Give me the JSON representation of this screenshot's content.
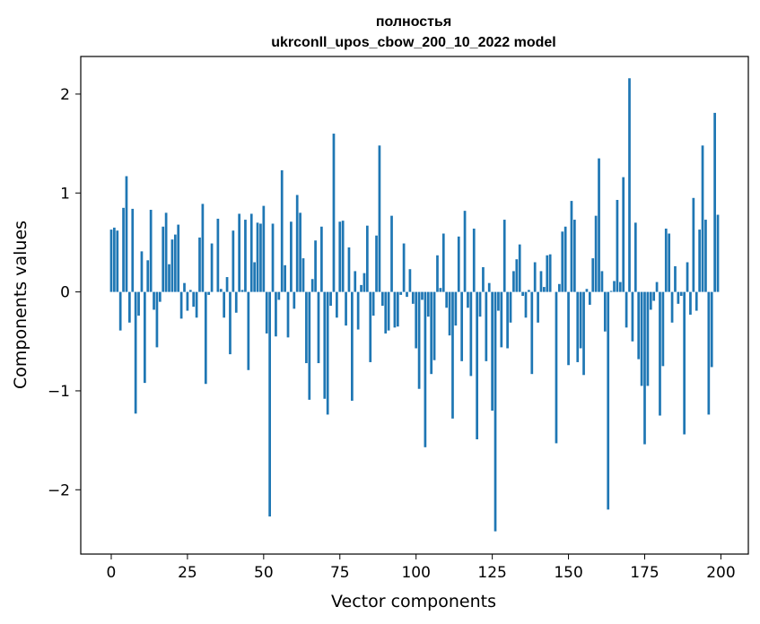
{
  "chart_data": {
    "type": "bar",
    "title_line1": "полностья",
    "title_line2": "ukrconll_upos_cbow_200_10_2022 model",
    "xlabel": "Vector components",
    "ylabel": "Components values",
    "xlim": [
      -10,
      209
    ],
    "ylim": [
      -2.65,
      2.38
    ],
    "xticks": [
      0,
      25,
      50,
      75,
      100,
      125,
      150,
      175,
      200
    ],
    "xtick_labels": [
      "0",
      "25",
      "50",
      "75",
      "100",
      "125",
      "150",
      "175",
      "200"
    ],
    "yticks": [
      -2,
      -1,
      0,
      1,
      2
    ],
    "ytick_labels": [
      "−2",
      "−1",
      "0",
      "1",
      "2"
    ],
    "bar_color": "#1f77b4",
    "x": [
      0,
      1,
      2,
      3,
      4,
      5,
      6,
      7,
      8,
      9,
      10,
      11,
      12,
      13,
      14,
      15,
      16,
      17,
      18,
      19,
      20,
      21,
      22,
      23,
      24,
      25,
      26,
      27,
      28,
      29,
      30,
      31,
      32,
      33,
      34,
      35,
      36,
      37,
      38,
      39,
      40,
      41,
      42,
      43,
      44,
      45,
      46,
      47,
      48,
      49,
      50,
      51,
      52,
      53,
      54,
      55,
      56,
      57,
      58,
      59,
      60,
      61,
      62,
      63,
      64,
      65,
      66,
      67,
      68,
      69,
      70,
      71,
      72,
      73,
      74,
      75,
      76,
      77,
      78,
      79,
      80,
      81,
      82,
      83,
      84,
      85,
      86,
      87,
      88,
      89,
      90,
      91,
      92,
      93,
      94,
      95,
      96,
      97,
      98,
      99,
      100,
      101,
      102,
      103,
      104,
      105,
      106,
      107,
      108,
      109,
      110,
      111,
      112,
      113,
      114,
      115,
      116,
      117,
      118,
      119,
      120,
      121,
      122,
      123,
      124,
      125,
      126,
      127,
      128,
      129,
      130,
      131,
      132,
      133,
      134,
      135,
      136,
      137,
      138,
      139,
      140,
      141,
      142,
      143,
      144,
      145,
      146,
      147,
      148,
      149,
      150,
      151,
      152,
      153,
      154,
      155,
      156,
      157,
      158,
      159,
      160,
      161,
      162,
      163,
      164,
      165,
      166,
      167,
      168,
      169,
      170,
      171,
      172,
      173,
      174,
      175,
      176,
      177,
      178,
      179,
      180,
      181,
      182,
      183,
      184,
      185,
      186,
      187,
      188,
      189,
      190,
      191,
      192,
      193,
      194,
      195,
      196,
      197,
      198,
      199
    ],
    "values": [
      0.63,
      0.65,
      0.62,
      -0.39,
      0.85,
      1.17,
      -0.31,
      0.84,
      -1.23,
      -0.24,
      0.41,
      -0.92,
      0.32,
      0.83,
      -0.18,
      -0.56,
      -0.1,
      0.66,
      0.8,
      0.28,
      0.53,
      0.58,
      0.68,
      -0.27,
      0.09,
      -0.19,
      0.02,
      -0.15,
      -0.26,
      0.55,
      0.89,
      -0.93,
      -0.03,
      0.49,
      0.0,
      0.74,
      0.03,
      -0.26,
      0.15,
      -0.63,
      0.62,
      -0.21,
      0.79,
      0.02,
      0.73,
      -0.79,
      0.79,
      0.3,
      0.7,
      0.69,
      0.87,
      -0.42,
      -2.27,
      0.69,
      -0.45,
      -0.08,
      1.23,
      0.27,
      -0.46,
      0.71,
      -0.17,
      0.98,
      0.8,
      0.34,
      -0.72,
      -1.09,
      0.13,
      0.52,
      -0.72,
      0.66,
      -1.08,
      -1.24,
      -0.14,
      1.6,
      -0.26,
      0.71,
      0.72,
      -0.34,
      0.45,
      -1.1,
      0.21,
      -0.38,
      0.07,
      0.19,
      0.67,
      -0.71,
      -0.24,
      0.57,
      1.48,
      -0.14,
      -0.42,
      -0.39,
      0.77,
      -0.36,
      -0.35,
      -0.03,
      0.49,
      -0.05,
      0.23,
      -0.12,
      -0.57,
      -0.98,
      -0.08,
      -1.57,
      -0.25,
      -0.83,
      -0.69,
      0.37,
      0.04,
      0.59,
      -0.16,
      -0.44,
      -1.28,
      -0.34,
      0.56,
      -0.7,
      0.82,
      -0.16,
      -0.85,
      0.64,
      -1.49,
      -0.25,
      0.25,
      -0.7,
      0.09,
      -1.2,
      -2.42,
      -0.19,
      -0.56,
      0.73,
      -0.57,
      -0.31,
      0.21,
      0.33,
      0.48,
      -0.04,
      -0.26,
      0.02,
      -0.83,
      0.3,
      -0.31,
      0.21,
      0.05,
      0.37,
      0.38,
      0.0,
      -1.53,
      0.08,
      0.61,
      0.66,
      -0.74,
      0.92,
      0.73,
      -0.71,
      -0.57,
      -0.84,
      0.03,
      -0.13,
      0.34,
      0.77,
      1.35,
      0.21,
      -0.4,
      -2.2,
      0.01,
      0.11,
      0.93,
      0.1,
      1.16,
      -0.36,
      2.16,
      -0.5,
      0.7,
      -0.68,
      -0.95,
      -1.54,
      -0.95,
      -0.18,
      -0.09,
      0.1,
      -1.25,
      -0.75,
      0.64,
      0.59,
      -0.31,
      0.26,
      -0.12,
      -0.04,
      -1.44,
      0.3,
      -0.23,
      0.95,
      -0.19,
      0.63,
      1.48,
      0.73,
      -1.24,
      -0.76,
      1.81,
      0.78
    ]
  }
}
